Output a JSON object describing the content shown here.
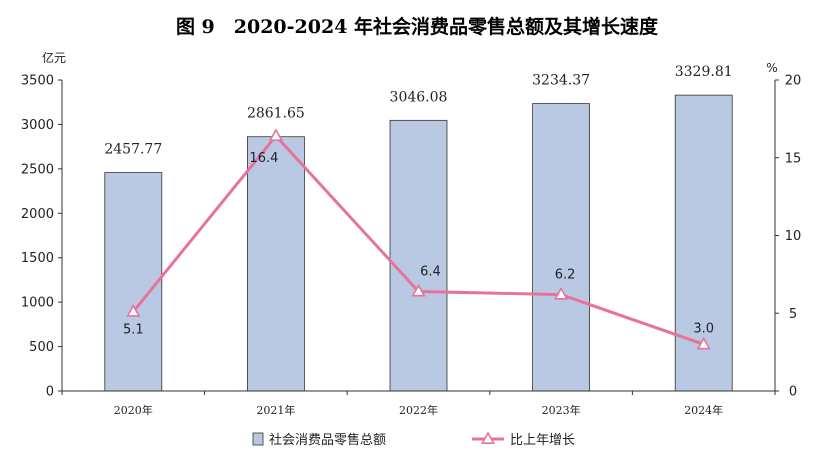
{
  "chart_data": {
    "type": "bar",
    "title": "图 9　2020-2024 年社会消费品零售总额及其增长速度",
    "categories": [
      "2020年",
      "2021年",
      "2022年",
      "2023年",
      "2024年"
    ],
    "y_left": {
      "unit": "亿元",
      "range": [
        0,
        3500
      ],
      "ticks": [
        "0",
        "500",
        "1000",
        "1500",
        "2000",
        "2500",
        "3000",
        "3500"
      ]
    },
    "y_right": {
      "unit": "%",
      "range": [
        0,
        20
      ],
      "ticks": [
        "0",
        "5",
        "10",
        "15",
        "20"
      ]
    },
    "series": [
      {
        "name": "社会消费品零售总额",
        "type": "bar",
        "axis": "left",
        "color": "#b9c9e3",
        "values": [
          2457.77,
          2861.65,
          3046.08,
          3234.37,
          3329.81
        ],
        "labels": [
          "2457.77",
          "2861.65",
          "3046.08",
          "3234.37",
          "3329.81"
        ]
      },
      {
        "name": "比上年增长",
        "type": "line",
        "axis": "right",
        "color": "#e8739a",
        "values": [
          5.1,
          16.4,
          6.4,
          6.2,
          3.0
        ],
        "labels": [
          "5.1",
          "16.4",
          "6.4",
          "6.2",
          "3.0"
        ]
      }
    ],
    "legend_position": "bottom",
    "grid": false
  }
}
